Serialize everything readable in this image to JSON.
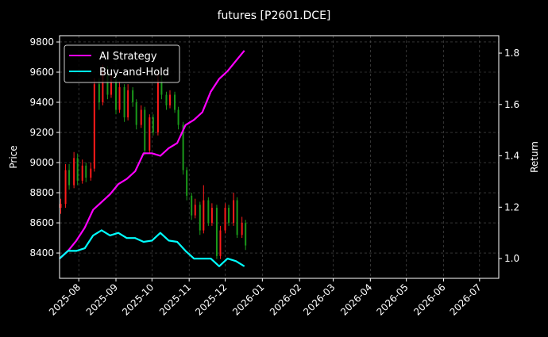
{
  "chart_data": {
    "type": "line",
    "title": "futures [P2601.DCE]",
    "ylabel": "Price",
    "y2label": "Return",
    "xlim": [
      "2025-07-16",
      "2026-07-17"
    ],
    "ylim": [
      8232,
      9842
    ],
    "y2lim": [
      0.923,
      1.868
    ],
    "grid": true,
    "legend_position": "top-left",
    "x_ticks": [
      "2025-08",
      "2025-09",
      "2025-10",
      "2025-11",
      "2025-12",
      "2026-01",
      "2026-02",
      "2026-03",
      "2026-04",
      "2026-05",
      "2026-06",
      "2026-07"
    ],
    "y_ticks": [
      8400,
      8600,
      8800,
      9000,
      9200,
      9400,
      9600,
      9800
    ],
    "y2_ticks": [
      1.0,
      1.2,
      1.4,
      1.6,
      1.8
    ],
    "colors": {
      "background": "#000000",
      "up": "#ff1a1a",
      "down": "#1a9a1a",
      "grid": "#555555",
      "axis": "#ffffff"
    },
    "candles": {
      "dates": [
        "2025-07-17",
        "2025-07-21",
        "2025-07-24",
        "2025-07-28",
        "2025-07-31",
        "2025-08-04",
        "2025-08-07",
        "2025-08-11",
        "2025-08-14",
        "2025-08-18",
        "2025-08-21",
        "2025-08-25",
        "2025-08-28",
        "2025-09-01",
        "2025-09-04",
        "2025-09-08",
        "2025-09-11",
        "2025-09-15",
        "2025-09-18",
        "2025-09-22",
        "2025-09-25",
        "2025-09-29",
        "2025-10-02",
        "2025-10-06",
        "2025-10-09",
        "2025-10-13",
        "2025-10-16",
        "2025-10-20",
        "2025-10-23",
        "2025-10-27",
        "2025-10-30",
        "2025-11-03",
        "2025-11-06",
        "2025-11-10",
        "2025-11-13",
        "2025-11-17",
        "2025-11-20",
        "2025-11-24",
        "2025-11-27",
        "2025-12-01",
        "2025-12-04",
        "2025-12-08",
        "2025-12-11",
        "2025-12-15",
        "2025-12-18"
      ],
      "ohlc": [
        [
          8700,
          8760,
          8660,
          8726
        ],
        [
          8726,
          8990,
          8700,
          8950
        ],
        [
          8950,
          8990,
          8820,
          8850
        ],
        [
          8850,
          9070,
          8830,
          9030
        ],
        [
          9030,
          9060,
          8850,
          8880
        ],
        [
          8880,
          9020,
          8860,
          8980
        ],
        [
          8980,
          9000,
          8870,
          8900
        ],
        [
          8900,
          9000,
          8880,
          8960
        ],
        [
          8960,
          9560,
          8940,
          9520
        ],
        [
          9520,
          9560,
          9350,
          9400
        ],
        [
          9400,
          9650,
          9380,
          9600
        ],
        [
          9600,
          9640,
          9420,
          9450
        ],
        [
          9450,
          9600,
          9430,
          9550
        ],
        [
          9550,
          9580,
          9320,
          9350
        ],
        [
          9350,
          9540,
          9330,
          9500
        ],
        [
          9500,
          9520,
          9270,
          9300
        ],
        [
          9300,
          9520,
          9280,
          9480
        ],
        [
          9480,
          9500,
          9370,
          9400
        ],
        [
          9400,
          9420,
          9220,
          9250
        ],
        [
          9250,
          9380,
          9230,
          9350
        ],
        [
          9350,
          9370,
          9050,
          9080
        ],
        [
          9080,
          9320,
          9060,
          9300
        ],
        [
          9300,
          9320,
          9180,
          9200
        ],
        [
          9200,
          9600,
          9180,
          9550
        ],
        [
          9550,
          9580,
          9420,
          9450
        ],
        [
          9450,
          9470,
          9350,
          9380
        ],
        [
          9380,
          9480,
          9360,
          9450
        ],
        [
          9450,
          9470,
          9330,
          9350
        ],
        [
          9350,
          9370,
          9220,
          9250
        ],
        [
          9250,
          9270,
          8920,
          8950
        ],
        [
          8950,
          8970,
          8750,
          8780
        ],
        [
          8780,
          8800,
          8620,
          8650
        ],
        [
          8650,
          8760,
          8630,
          8720
        ],
        [
          8720,
          8740,
          8520,
          8550
        ],
        [
          8550,
          8850,
          8530,
          8750
        ],
        [
          8750,
          8770,
          8580,
          8600
        ],
        [
          8600,
          8730,
          8580,
          8700
        ],
        [
          8700,
          8720,
          8360,
          8380
        ],
        [
          8380,
          8580,
          8360,
          8550
        ],
        [
          8550,
          8730,
          8530,
          8700
        ],
        [
          8700,
          8720,
          8580,
          8600
        ],
        [
          8600,
          8800,
          8580,
          8750
        ],
        [
          8750,
          8770,
          8500,
          8520
        ],
        [
          8520,
          8640,
          8500,
          8600
        ],
        [
          8600,
          8620,
          8420,
          8450
        ]
      ]
    },
    "x": [
      "2025-07-16",
      "2025-07-23",
      "2025-07-30",
      "2025-08-06",
      "2025-08-13",
      "2025-08-20",
      "2025-08-27",
      "2025-09-03",
      "2025-09-10",
      "2025-09-17",
      "2025-09-24",
      "2025-10-01",
      "2025-10-08",
      "2025-10-15",
      "2025-10-22",
      "2025-10-29",
      "2025-11-05",
      "2025-11-12",
      "2025-11-19",
      "2025-11-26",
      "2025-12-03",
      "2025-12-10",
      "2025-12-17"
    ],
    "series": [
      {
        "name": "AI Strategy",
        "color": "#ff00ff",
        "values": [
          1.0,
          1.03,
          1.07,
          1.12,
          1.19,
          1.22,
          1.25,
          1.29,
          1.31,
          1.34,
          1.41,
          1.41,
          1.4,
          1.43,
          1.45,
          1.52,
          1.54,
          1.57,
          1.65,
          1.7,
          1.73,
          1.77,
          1.81
        ]
      },
      {
        "name": "Buy-and-Hold",
        "color": "#00ffff",
        "values": [
          1.0,
          1.03,
          1.03,
          1.04,
          1.09,
          1.11,
          1.09,
          1.1,
          1.08,
          1.08,
          1.065,
          1.07,
          1.1,
          1.07,
          1.065,
          1.03,
          1.0,
          1.0,
          1.0,
          0.97,
          1.0,
          0.99,
          0.97
        ]
      }
    ]
  }
}
